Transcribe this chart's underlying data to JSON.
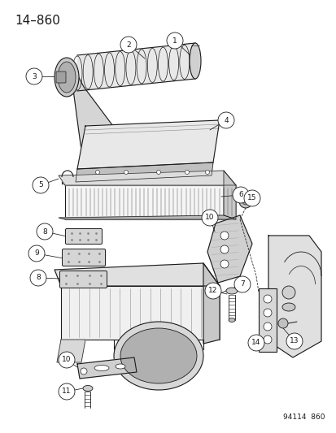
{
  "title": "14–860",
  "footer": "94114  860",
  "bg_color": "#ffffff",
  "line_color": "#1a1a1a",
  "title_fontsize": 11,
  "label_fontsize": 6.5
}
